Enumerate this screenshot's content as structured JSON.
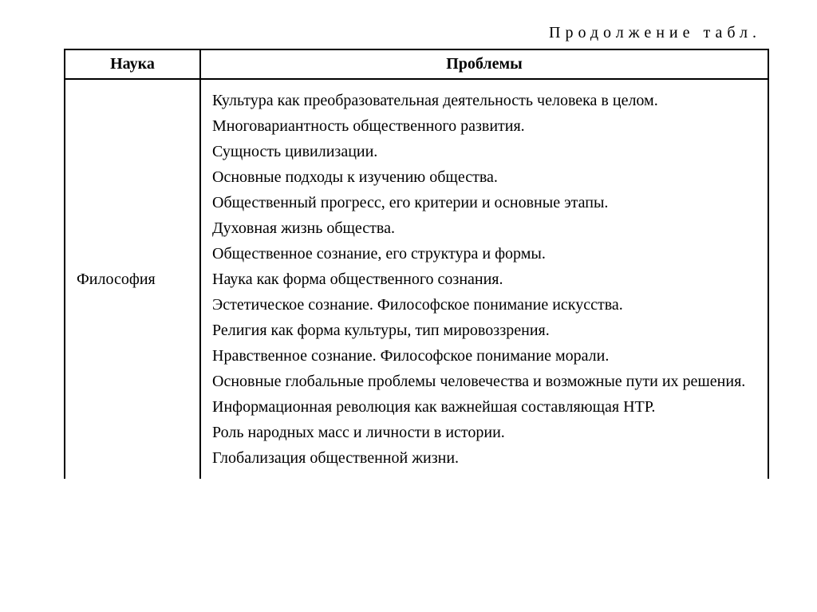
{
  "continuation_label": "Продолжение табл.",
  "table": {
    "columns": [
      "Наука",
      "Проблемы"
    ],
    "rows": [
      {
        "science": "Философия",
        "problems": [
          "Культура как преобразовательная деятельность человека в целом.",
          "Многовариантность общественного развития.",
          "Сущность цивилизации.",
          "Основные подходы к изучению общества.",
          "Общественный прогресс, его критерии и основные этапы.",
          "Духовная жизнь общества.",
          "Общественное сознание, его структура и формы.",
          "Наука как форма общественного сознания.",
          "Эстетическое сознание. Философское понимание искусства.",
          "Религия как форма культуры, тип мировоззрения.",
          "Нравственное сознание. Философское понимание морали.",
          "Основные глобальные проблемы человечества и возможные пути их решения.",
          "Информационная революция как важнейшая составляющая НТР.",
          "Роль народных масс и личности в истории.",
          "Глобализация общественной жизни."
        ]
      }
    ]
  },
  "styling": {
    "background_color": "#ffffff",
    "text_color": "#000000",
    "border_color": "#000000",
    "font_family": "Times New Roman",
    "body_fontsize": 20,
    "header_fontsize": 20,
    "line_height": 1.6,
    "letter_spacing_continuation": 6
  }
}
